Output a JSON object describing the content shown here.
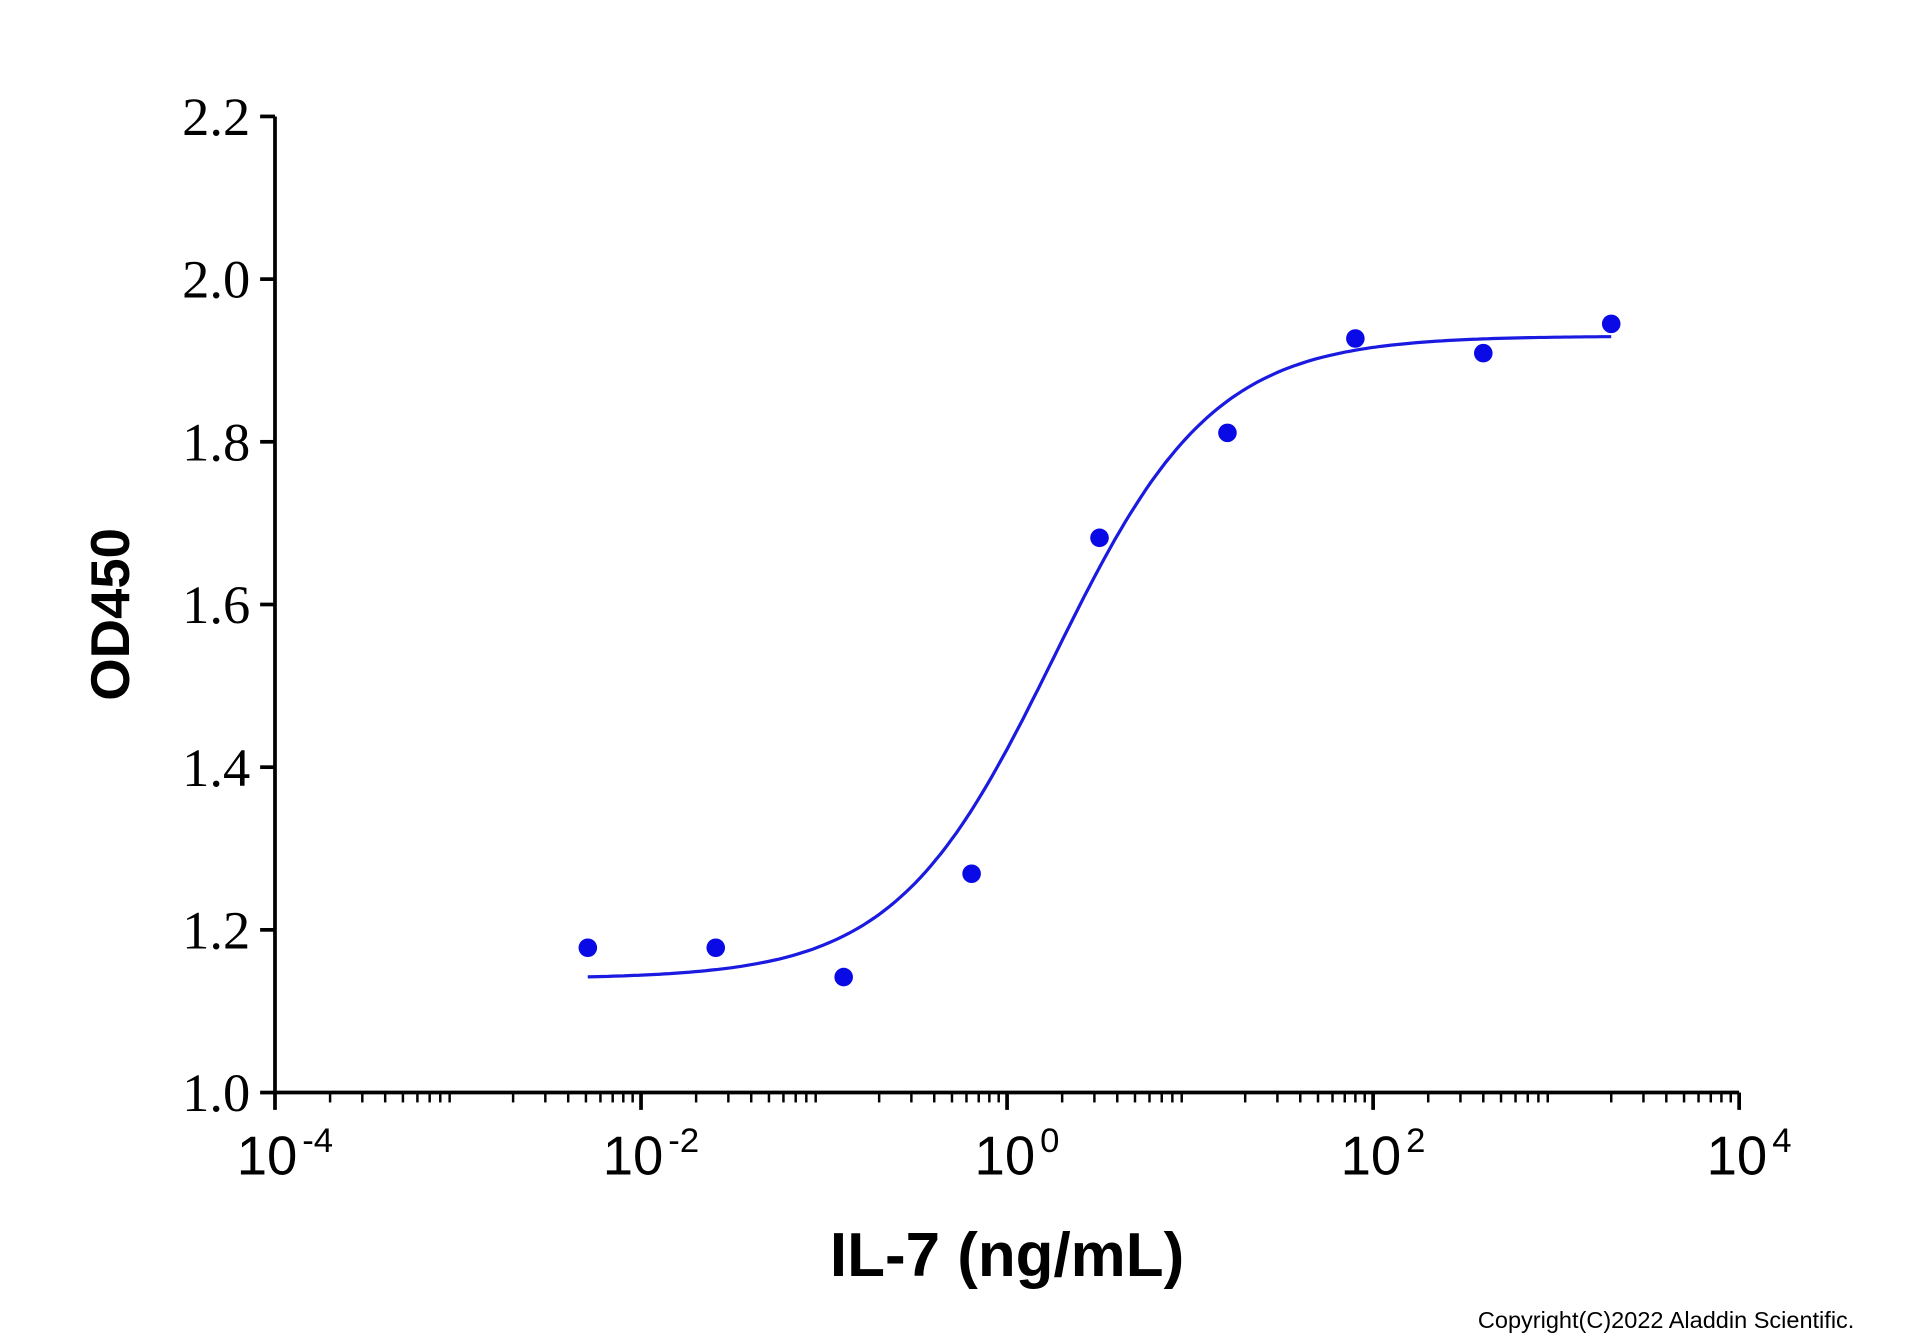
{
  "chart_data": {
    "type": "scatter",
    "title": "",
    "xlabel": "IL-7 (ng/mL)",
    "ylabel": "OD450",
    "xscale": "log",
    "xlim": [
      0.0001,
      10000
    ],
    "ylim": [
      1.0,
      2.2
    ],
    "x_ticks": [
      {
        "base": "10",
        "exp": "-4",
        "value": 0.0001
      },
      {
        "base": "10",
        "exp": "-2",
        "value": 0.01
      },
      {
        "base": "10",
        "exp": "0",
        "value": 1
      },
      {
        "base": "10",
        "exp": "2",
        "value": 100
      },
      {
        "base": "10",
        "exp": "4",
        "value": 10000
      }
    ],
    "y_ticks": [
      "1.0",
      "1.2",
      "1.4",
      "1.6",
      "1.8",
      "2.0",
      "2.2"
    ],
    "grid": false,
    "series": [
      {
        "name": "OD450",
        "color": "#0a0ae6",
        "x": [
          0.00512,
          0.0256,
          0.128,
          0.64,
          3.2,
          16,
          80,
          400,
          2000
        ],
        "y": [
          1.178,
          1.178,
          1.142,
          1.269,
          1.682,
          1.811,
          1.927,
          1.909,
          1.945
        ]
      }
    ],
    "fit": {
      "model": "4PL",
      "bottom": 1.14,
      "top": 1.93,
      "ec50": 1.8,
      "hill": 1.0,
      "color": "#1a1ae0",
      "x_range": [
        0.00512,
        2000
      ]
    }
  },
  "copyright": "Copyright(C)2022 Aladdin Scientific."
}
